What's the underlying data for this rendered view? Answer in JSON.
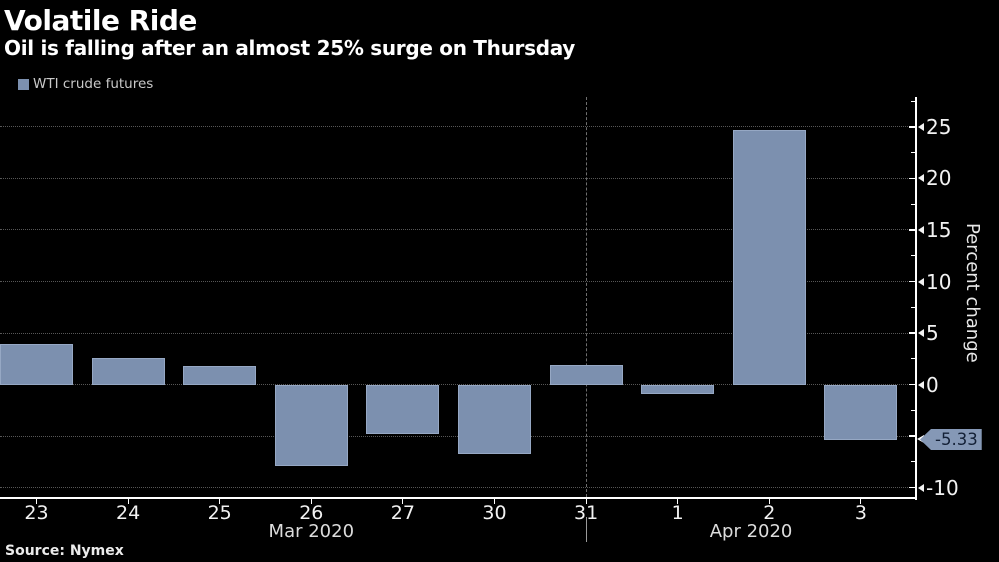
{
  "header": {
    "title": "Volatile Ride",
    "subtitle": "Oil is falling after an almost 25% surge on Thursday",
    "legend": {
      "label": "WTI crude futures",
      "swatch_color": "#7C90AF"
    }
  },
  "chart_data": {
    "type": "bar",
    "title": "Volatile Ride",
    "subtitle": "Oil is falling after an almost 25% surge on Thursday",
    "series": [
      {
        "name": "WTI crude futures",
        "color": "#7C90AF",
        "values": [
          3.9,
          2.6,
          1.8,
          -7.9,
          -4.8,
          -6.7,
          1.9,
          -0.9,
          24.7,
          -5.33
        ]
      }
    ],
    "categories": [
      "23",
      "24",
      "25",
      "26",
      "27",
      "30",
      "31",
      "1",
      "2",
      "3"
    ],
    "x_axis_groups": [
      {
        "label": "Mar 2020",
        "categories": [
          "23",
          "24",
          "25",
          "26",
          "27",
          "30",
          "31"
        ]
      },
      {
        "label": "Apr 2020",
        "categories": [
          "1",
          "2",
          "3"
        ]
      }
    ],
    "month_divider_at_category": "31",
    "xlabel": "",
    "ylabel": "Percent change",
    "ylim": [
      -11,
      27.9
    ],
    "yticks": [
      25,
      20,
      15,
      10,
      5,
      0,
      -5,
      -10
    ],
    "ytick_labels": [
      "25",
      "20",
      "15",
      "10",
      "5",
      "0",
      "",
      "-10"
    ],
    "minor_yticks": [
      27.5,
      22.5,
      17.5,
      12.5,
      7.5,
      2.5,
      -2.5,
      -7.5
    ],
    "grid": "horizontal dotted",
    "legend_position": "top-left",
    "last_value_badge": "-5.33",
    "last_value": -5.33,
    "background_color": "#000000",
    "axis_color": "#FFFFFF"
  },
  "footer": {
    "source": "Source: Nymex"
  }
}
